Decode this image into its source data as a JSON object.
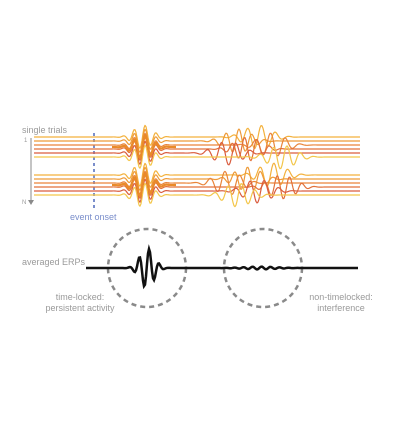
{
  "labels": {
    "single_trials": "single trials",
    "trial_first": "1",
    "trial_last": "N",
    "event_onset": "event onset",
    "averaged_erps": "averaged  ERPs",
    "timelocked_line1": "time-locked:",
    "timelocked_line2": "persistent activity",
    "nontimelocked_line1": "non-timelocked:",
    "nontimelocked_line2": "interference"
  },
  "colors": {
    "trace_palette": [
      "#f3b13c",
      "#ee9a38",
      "#e9853a",
      "#e2713a",
      "#d95c3e",
      "#f3c64a"
    ],
    "timelocked_burst": "#e98a2a",
    "nontimelocked_burst": [
      "#f0b437",
      "#e8823a",
      "#d9553c",
      "#f6ca4f",
      "#e06a3c",
      "#f2a845"
    ],
    "onset_line": "#7a8ecb",
    "erp_trace": "#111111",
    "dashed_circle": "#8a8a8a",
    "label_text": "#9a9a9a"
  }
}
